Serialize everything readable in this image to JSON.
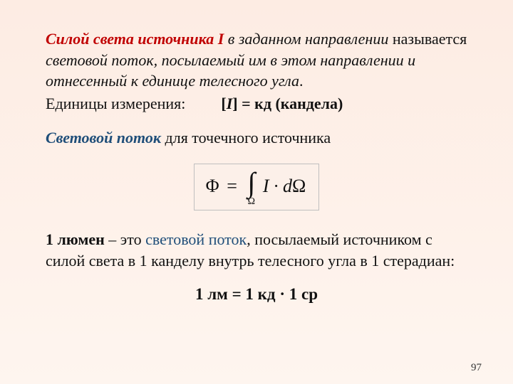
{
  "page": {
    "background_top": "#fdece3",
    "background_bottom": "#fef5ef",
    "page_number": "97"
  },
  "p1": {
    "lead": "Силой света источника I",
    "rest_line1": " в заданном направлении ",
    "rest_line2a": "называется ",
    "rest_line2b": "световой поток, посылаемый им в этом направлении и отнесенный к единице телесного угла",
    "period": ".",
    "units_label": "Единицы измерения:",
    "units_expr": "[I] = кд (кандела)"
  },
  "p2": {
    "term": "Световой поток",
    "rest": "  для точечного источника"
  },
  "formula": {
    "lhs": "Φ",
    "eq": "=",
    "int_upper": "",
    "int_lower": "Ω",
    "integrand": "I · dΩ",
    "border_color": "#bfbfbf",
    "fill_color": "#fcf0e9"
  },
  "p3": {
    "a": "1 люмен",
    "b": " – это ",
    "c": "световой поток",
    "d": ", посылаемый источником с силой света в 1 канделу внутрь телесного угла в 1 стерадиан:"
  },
  "p4": {
    "text": "1 лм = 1 кд · 1 ср"
  }
}
